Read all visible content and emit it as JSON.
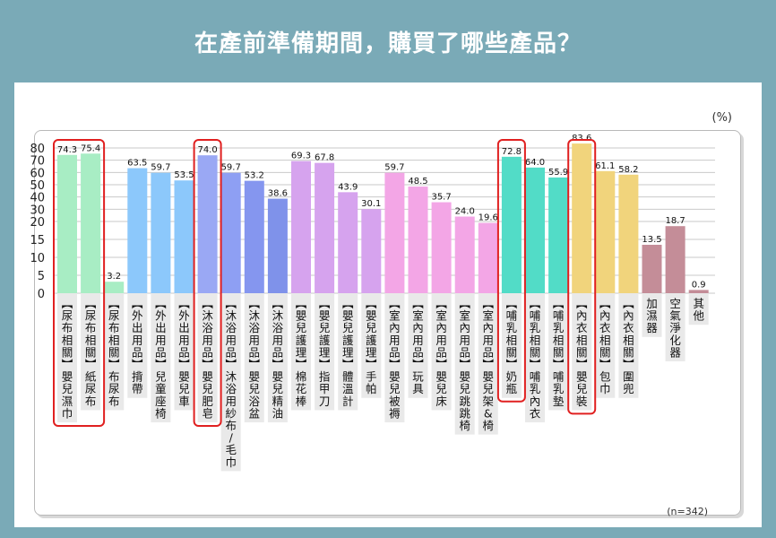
{
  "title": "在產前準備期間，購買了哪些產品？",
  "unit_label": "(%)",
  "sample_label": "(n=342)",
  "chart_data": {
    "type": "bar",
    "ylim": [
      0,
      80
    ],
    "yticks": [
      0,
      5,
      10,
      15,
      20,
      30,
      40,
      50,
      60,
      70,
      80
    ],
    "grid": true,
    "categories": [
      {
        "group": "尿布相關",
        "item": "嬰兒濕巾",
        "value": 74.3,
        "value_label": "74.3",
        "color": "#a8edc4",
        "highlight": true
      },
      {
        "group": "尿布相關",
        "item": "紙尿布",
        "value": 75.4,
        "value_label": "75.4",
        "color": "#a8edc4",
        "highlight": true
      },
      {
        "group": "尿布相關",
        "item": "布尿布",
        "value": 3.2,
        "value_label": "3.2",
        "color": "#a8edc4",
        "highlight": false
      },
      {
        "group": "外出用品",
        "item": "揹帶",
        "value": 63.5,
        "value_label": "63.5",
        "color": "#8cc8fb",
        "highlight": false
      },
      {
        "group": "外出用品",
        "item": "兒童座椅",
        "value": 59.7,
        "value_label": "59.7",
        "color": "#8cc8fb",
        "highlight": false
      },
      {
        "group": "外出用品",
        "item": "嬰兒車",
        "value": 53.5,
        "value_label": "53.5",
        "color": "#8cc8fb",
        "highlight": false
      },
      {
        "group": "沐浴用品",
        "item": "嬰兒肥皂",
        "value": 74.0,
        "value_label": "74.0",
        "color": "#9aa8f4",
        "highlight": true
      },
      {
        "group": "沐浴用品",
        "item": "沐浴用紗布/毛巾",
        "value": 59.7,
        "value_label": "59.7",
        "color": "#8e9ff3",
        "highlight": false
      },
      {
        "group": "沐浴用品",
        "item": "嬰兒浴盆",
        "value": 53.2,
        "value_label": "53.2",
        "color": "#8596ef",
        "highlight": false
      },
      {
        "group": "沐浴用品",
        "item": "嬰兒精油",
        "value": 38.6,
        "value_label": "38.6",
        "color": "#7f92ea",
        "highlight": false
      },
      {
        "group": "嬰兒護理",
        "item": "棉花棒",
        "value": 69.3,
        "value_label": "69.3",
        "color": "#d6a3ee",
        "highlight": false
      },
      {
        "group": "嬰兒護理",
        "item": "指甲刀",
        "value": 67.8,
        "value_label": "67.8",
        "color": "#d6a3ee",
        "highlight": false
      },
      {
        "group": "嬰兒護理",
        "item": "體溫計",
        "value": 43.9,
        "value_label": "43.9",
        "color": "#d6a3ee",
        "highlight": false
      },
      {
        "group": "嬰兒護理",
        "item": "手帕",
        "value": 30.1,
        "value_label": "30.1",
        "color": "#d6a3ee",
        "highlight": false
      },
      {
        "group": "室內用品",
        "item": "嬰兒被褥",
        "value": 59.7,
        "value_label": "59.7",
        "color": "#f3a6e6",
        "highlight": false
      },
      {
        "group": "室內用品",
        "item": "玩具",
        "value": 48.5,
        "value_label": "48.5",
        "color": "#f3a6e6",
        "highlight": false
      },
      {
        "group": "室內用品",
        "item": "嬰兒床",
        "value": 35.7,
        "value_label": "35.7",
        "color": "#f3a6e6",
        "highlight": false
      },
      {
        "group": "室內用品",
        "item": "嬰兒跳跳椅",
        "value": 24.0,
        "value_label": "24.0",
        "color": "#f3a6e6",
        "highlight": false
      },
      {
        "group": "室內用品",
        "item": "嬰兒架&椅",
        "value": 19.6,
        "value_label": "19.6",
        "color": "#f3a6e6",
        "highlight": false
      },
      {
        "group": "哺乳相關",
        "item": "奶瓶",
        "value": 72.8,
        "value_label": "72.8",
        "color": "#52dcc7",
        "highlight": true
      },
      {
        "group": "哺乳相關",
        "item": "哺乳內衣",
        "value": 64.0,
        "value_label": "64.0",
        "color": "#52dcc7",
        "highlight": false
      },
      {
        "group": "哺乳相關",
        "item": "哺乳墊",
        "value": 55.9,
        "value_label": "55.9",
        "color": "#52dcc7",
        "highlight": false
      },
      {
        "group": "內衣相關",
        "item": "嬰兒裝",
        "value": 83.6,
        "value_label": "83.6",
        "color": "#f1d47c",
        "highlight": true
      },
      {
        "group": "內衣相關",
        "item": "包巾",
        "value": 61.1,
        "value_label": "61.1",
        "color": "#f1d47c",
        "highlight": false
      },
      {
        "group": "內衣相關",
        "item": "圍兜",
        "value": 58.2,
        "value_label": "58.2",
        "color": "#f1d47c",
        "highlight": false
      },
      {
        "group": "",
        "item": "加濕器",
        "value": 13.5,
        "value_label": "13.5",
        "color": "#c48d98",
        "highlight": false
      },
      {
        "group": "",
        "item": "空氣淨化器",
        "value": 18.7,
        "value_label": "18.7",
        "color": "#c48d98",
        "highlight": false
      },
      {
        "group": "",
        "item": "其他",
        "value": 0.9,
        "value_label": "0.9",
        "color": "#c48d98",
        "highlight": false
      }
    ]
  }
}
